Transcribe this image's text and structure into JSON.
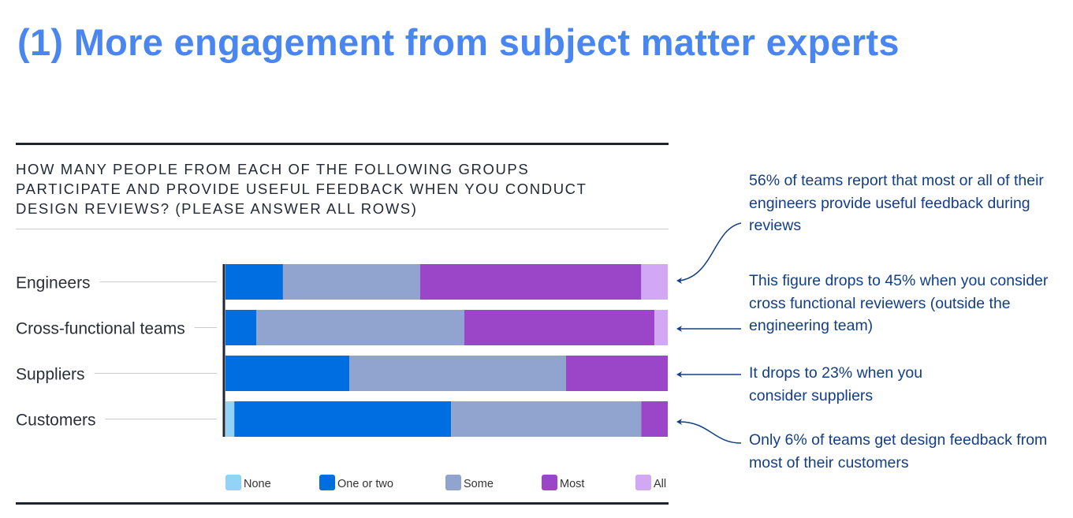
{
  "title": "(1) More engagement from subject matter experts",
  "annotations": [
    "56% of teams report that most or all of their engineers provide useful feedback during reviews",
    "This figure drops to 45% when you consider cross functional reviewers (outside the engineering team)",
    "It drops to 23% when you consider suppliers",
    "Only 6% of teams get design feedback from most of their customers"
  ],
  "chart_data": {
    "type": "bar",
    "orientation": "horizontal-stacked-100",
    "title": "How many people from each of the following groups participate and provide useful feedback when you conduct design reviews? (Please answer all rows)",
    "categories": [
      "Engineers",
      "Cross-functional teams",
      "Suppliers",
      "Customers"
    ],
    "series": [
      {
        "name": "None",
        "color": "#93d3f8",
        "values": [
          0,
          0,
          0,
          2
        ]
      },
      {
        "name": "One or two",
        "color": "#006ee0",
        "values": [
          13,
          7,
          28,
          49
        ]
      },
      {
        "name": "Some",
        "color": "#91a3cf",
        "values": [
          31,
          47,
          49,
          43
        ]
      },
      {
        "name": "Most",
        "color": "#9b45c8",
        "values": [
          50,
          43,
          23,
          6
        ]
      },
      {
        "name": "All",
        "color": "#d2a8f4",
        "values": [
          6,
          3,
          0,
          0
        ]
      }
    ],
    "xlim": [
      0,
      100
    ],
    "legend": "bottom"
  }
}
